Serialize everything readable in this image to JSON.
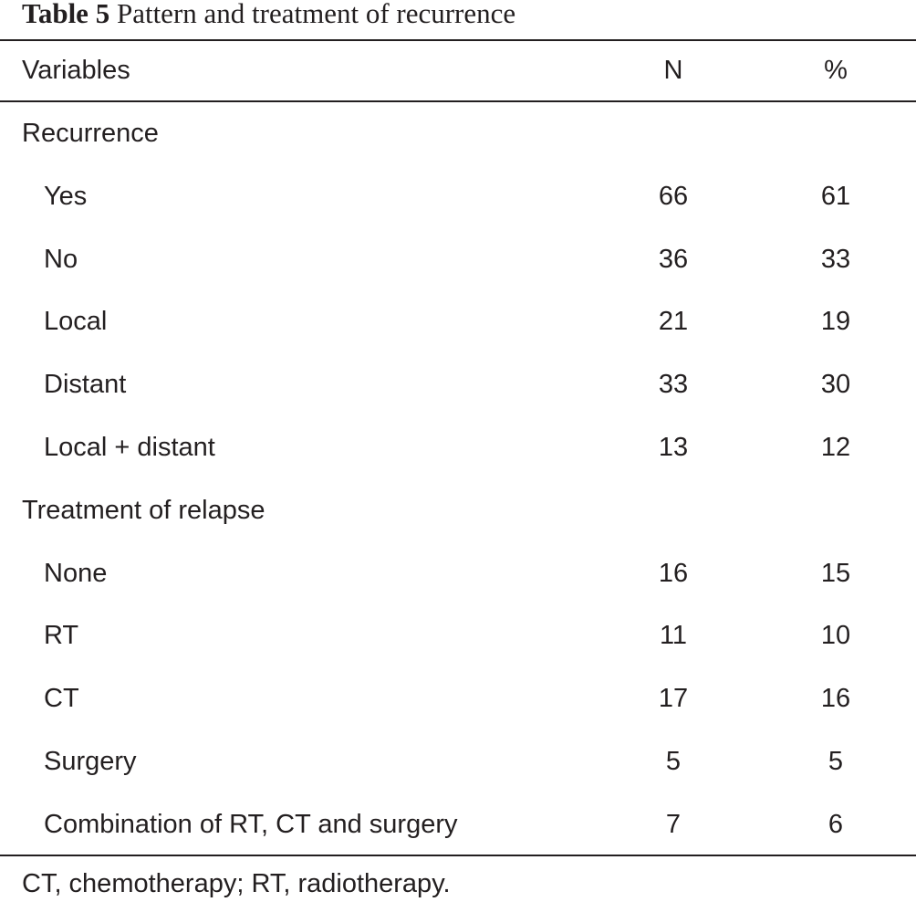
{
  "caption": {
    "label": "Table 5",
    "title": "Pattern and treatment of recurrence"
  },
  "header": {
    "variables": "Variables",
    "n": "N",
    "percent": "%"
  },
  "rows": [
    {
      "label": "Recurrence",
      "n": "",
      "percent": ""
    },
    {
      "label": "Yes",
      "n": "66",
      "percent": "61"
    },
    {
      "label": "No",
      "n": "36",
      "percent": "33"
    },
    {
      "label": "Local",
      "n": "21",
      "percent": "19"
    },
    {
      "label": "Distant",
      "n": "33",
      "percent": "30"
    },
    {
      "label": "Local + distant",
      "n": "13",
      "percent": "12"
    },
    {
      "label": "Treatment of relapse",
      "n": "",
      "percent": ""
    },
    {
      "label": "None",
      "n": "16",
      "percent": "15"
    },
    {
      "label": "RT",
      "n": "11",
      "percent": "10"
    },
    {
      "label": "CT",
      "n": "17",
      "percent": "16"
    },
    {
      "label": "Surgery",
      "n": "5",
      "percent": "5"
    },
    {
      "label": "Combination of RT, CT and surgery",
      "n": "7",
      "percent": "6"
    }
  ],
  "footnote": "CT, chemotherapy; RT, radiotherapy."
}
